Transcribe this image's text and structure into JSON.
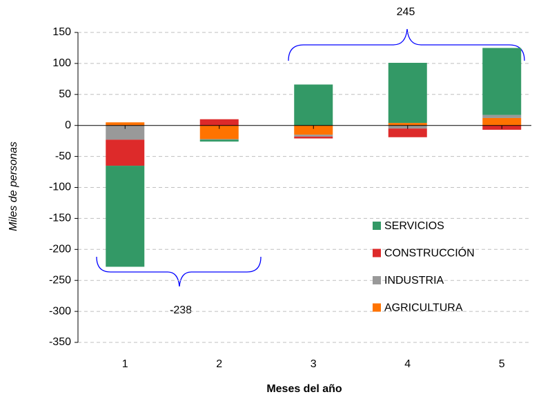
{
  "chart_data": {
    "type": "stacked_bar",
    "categories": [
      "1",
      "2",
      "3",
      "4",
      "5"
    ],
    "series": [
      {
        "name": "AGRICULTURA",
        "color": "#ff7300",
        "values": [
          5,
          -22,
          -15,
          4,
          12
        ]
      },
      {
        "name": "INDUSTRIA",
        "color": "#999999",
        "values": [
          -23,
          -1,
          -3,
          -5,
          5
        ]
      },
      {
        "name": "CONSTRUCCIÓN",
        "color": "#dd2a2a",
        "values": [
          -42,
          10,
          -3,
          -14,
          -7
        ]
      },
      {
        "name": "SERVICIOS",
        "color": "#339966",
        "values": [
          -163,
          -3,
          66,
          97,
          108
        ]
      }
    ],
    "xlabel": "Meses del año",
    "ylabel": "Miles de personas",
    "ylim": [
      -350,
      150
    ],
    "yticks": [
      -350,
      -300,
      -250,
      -200,
      -150,
      -100,
      -50,
      0,
      50,
      100,
      150
    ],
    "negative_tick_color": "#ff0000",
    "grid": true,
    "legend": "lower right",
    "annotations": [
      {
        "text": "245",
        "color": "#0000ff"
      },
      {
        "text": "-238",
        "color": "#0000ff"
      }
    ]
  }
}
